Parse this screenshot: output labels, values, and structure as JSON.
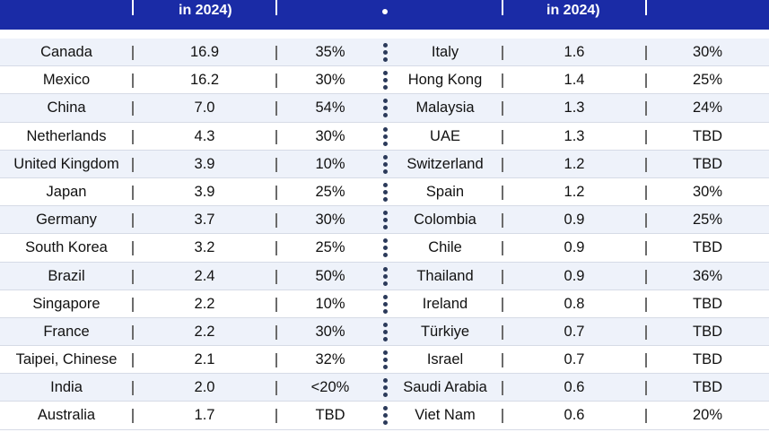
{
  "header": {
    "left_col2_fragment": "in 2024)",
    "right_col2_fragment": "in 2024)"
  },
  "colors": {
    "header_bg": "#1a2ba6",
    "row_alt": "#eef2fa",
    "text": "#111111"
  },
  "chart_data": {
    "type": "table",
    "rows": [
      {
        "left": {
          "country": "Canada",
          "value": "16.9",
          "rate": "35%"
        },
        "right": {
          "country": "Italy",
          "value": "1.6",
          "rate": "30%"
        }
      },
      {
        "left": {
          "country": "Mexico",
          "value": "16.2",
          "rate": "30%"
        },
        "right": {
          "country": "Hong Kong",
          "value": "1.4",
          "rate": "25%"
        }
      },
      {
        "left": {
          "country": "China",
          "value": "7.0",
          "rate": "54%"
        },
        "right": {
          "country": "Malaysia",
          "value": "1.3",
          "rate": "24%"
        }
      },
      {
        "left": {
          "country": "Netherlands",
          "value": "4.3",
          "rate": "30%"
        },
        "right": {
          "country": "UAE",
          "value": "1.3",
          "rate": "TBD"
        }
      },
      {
        "left": {
          "country": "United Kingdom",
          "value": "3.9",
          "rate": "10%"
        },
        "right": {
          "country": "Switzerland",
          "value": "1.2",
          "rate": "TBD"
        }
      },
      {
        "left": {
          "country": "Japan",
          "value": "3.9",
          "rate": "25%"
        },
        "right": {
          "country": "Spain",
          "value": "1.2",
          "rate": "30%"
        }
      },
      {
        "left": {
          "country": "Germany",
          "value": "3.7",
          "rate": "30%"
        },
        "right": {
          "country": "Colombia",
          "value": "0.9",
          "rate": "25%"
        }
      },
      {
        "left": {
          "country": "South Korea",
          "value": "3.2",
          "rate": "25%"
        },
        "right": {
          "country": "Chile",
          "value": "0.9",
          "rate": "TBD"
        }
      },
      {
        "left": {
          "country": "Brazil",
          "value": "2.4",
          "rate": "50%"
        },
        "right": {
          "country": "Thailand",
          "value": "0.9",
          "rate": "36%"
        }
      },
      {
        "left": {
          "country": "Singapore",
          "value": "2.2",
          "rate": "10%"
        },
        "right": {
          "country": "Ireland",
          "value": "0.8",
          "rate": "TBD"
        }
      },
      {
        "left": {
          "country": "France",
          "value": "2.2",
          "rate": "30%"
        },
        "right": {
          "country": "Türkiye",
          "value": "0.7",
          "rate": "TBD"
        }
      },
      {
        "left": {
          "country": "Taipei, Chinese",
          "value": "2.1",
          "rate": "32%"
        },
        "right": {
          "country": "Israel",
          "value": "0.7",
          "rate": "TBD"
        }
      },
      {
        "left": {
          "country": "India",
          "value": "2.0",
          "rate": "<20%"
        },
        "right": {
          "country": "Saudi Arabia",
          "value": "0.6",
          "rate": "TBD"
        }
      },
      {
        "left": {
          "country": "Australia",
          "value": "1.7",
          "rate": "TBD"
        },
        "right": {
          "country": "Viet Nam",
          "value": "0.6",
          "rate": "20%"
        }
      }
    ]
  }
}
